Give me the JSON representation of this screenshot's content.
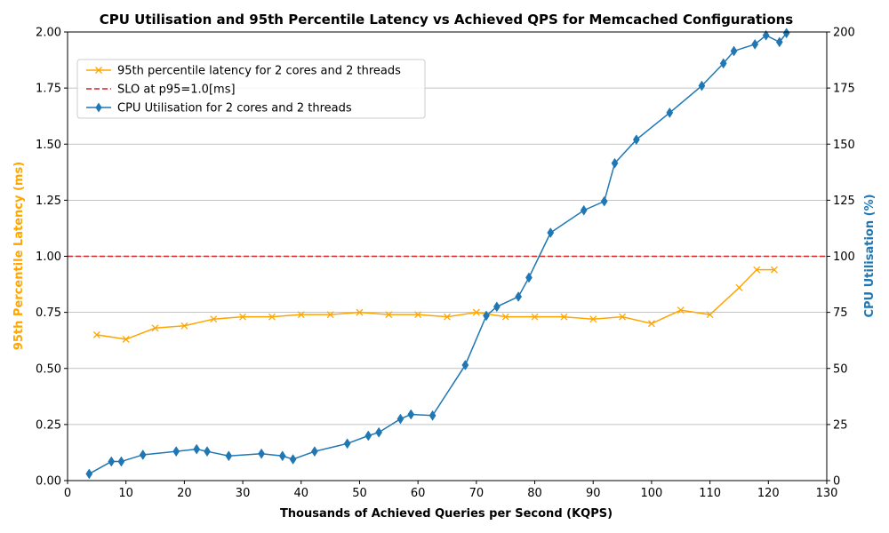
{
  "chart_data": {
    "type": "line",
    "title": "CPU Utilisation and 95th Percentile Latency vs Achieved QPS for Memcached Configurations",
    "xlabel": "Thousands of Achieved Queries per Second (KQPS)",
    "ylabel_left": "95th Percentile Latency (ms)",
    "ylabel_right": "CPU Utilisation (%)",
    "xlim": [
      0,
      130
    ],
    "ylim_left": [
      0,
      2.0
    ],
    "ylim_right": [
      0,
      200
    ],
    "x_ticks": [
      "0",
      "10",
      "20",
      "30",
      "40",
      "50",
      "60",
      "70",
      "80",
      "90",
      "100",
      "110",
      "120",
      "130"
    ],
    "y_left_ticks": [
      "0.00",
      "0.25",
      "0.50",
      "0.75",
      "1.00",
      "1.25",
      "1.50",
      "1.75",
      "2.00"
    ],
    "y_right_ticks": [
      "0",
      "25",
      "50",
      "75",
      "100",
      "125",
      "150",
      "175",
      "200"
    ],
    "grid": "horizontal",
    "legend_position": "upper-left",
    "colors": {
      "latency": "#FFA500",
      "slo": "#D62728",
      "cpu": "#1F77B4",
      "grid": "#B0B0B0"
    },
    "series": [
      {
        "name": "95th percentile latency for 2 cores and 2 threads",
        "axis": "left",
        "marker": "x",
        "x": [
          5,
          10,
          15,
          20,
          25,
          30,
          35,
          40,
          45,
          50,
          55,
          60,
          65,
          70,
          75,
          80,
          85,
          90,
          95,
          100,
          105,
          110,
          115,
          118,
          121
        ],
        "y": [
          0.65,
          0.63,
          0.68,
          0.69,
          0.72,
          0.73,
          0.73,
          0.74,
          0.74,
          0.75,
          0.74,
          0.74,
          0.73,
          0.75,
          0.73,
          0.73,
          0.73,
          0.72,
          0.73,
          0.7,
          0.76,
          0.74,
          0.86,
          0.94,
          0.94
        ]
      },
      {
        "name": "SLO at p95=1.0[ms]",
        "axis": "left",
        "style": "dashed",
        "y_constant": 1.0
      },
      {
        "name": "CPU Utilisation for 2 cores and 2 threads",
        "axis": "right",
        "marker": "diamond",
        "x": [
          3.7,
          7.5,
          9.2,
          12.9,
          18.6,
          22.1,
          23.9,
          27.6,
          33.2,
          36.8,
          38.6,
          42.3,
          47.9,
          51.5,
          53.3,
          57.0,
          58.8,
          62.5,
          68.1,
          71.7,
          73.5,
          77.2,
          79.0,
          82.7,
          88.4,
          91.9,
          93.7,
          97.4,
          103.1,
          108.6,
          112.3,
          114.1,
          117.7,
          119.6,
          121.9,
          123.1
        ],
        "y": [
          3,
          8.5,
          8.5,
          11.5,
          13,
          14,
          13,
          11,
          12,
          11,
          9.5,
          13,
          16.5,
          20,
          21.5,
          27.5,
          29.5,
          29,
          51.5,
          73.5,
          77.5,
          82,
          90.5,
          110.5,
          120.5,
          124.5,
          141.5,
          152,
          164,
          176,
          186,
          191.5,
          194.5,
          198.5,
          195.5,
          199.5
        ]
      }
    ]
  }
}
